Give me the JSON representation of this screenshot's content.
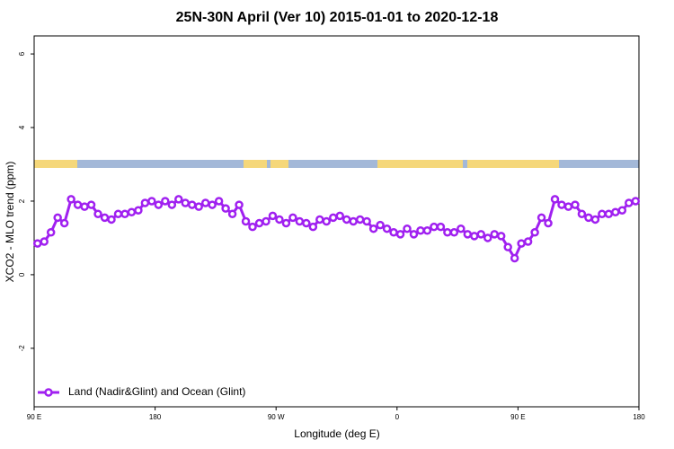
{
  "chart_data": {
    "type": "line",
    "title": "25N-30N April (Ver 10)   2015-01-01 to 2020-12-18",
    "x_label": "Longitude (deg E)",
    "y_label": "XCO2 - MLO trend (ppm)",
    "xlim": [
      90,
      540
    ],
    "ylim": [
      -3.59,
      6.49
    ],
    "xticks": [
      {
        "value": 90,
        "label": "90 E"
      },
      180,
      {
        "value": 270,
        "label": "90 W"
      },
      {
        "value": 360,
        "label": "0"
      },
      {
        "value": 450,
        "label": "90 E"
      },
      {
        "value": 540,
        "label": "180"
      }
    ],
    "yticks": [
      -2,
      0,
      2,
      4,
      6
    ],
    "legend": "bottomleft",
    "x": [
      92.5,
      97.5,
      102.5,
      107.5,
      112.5,
      117.5,
      122.5,
      127.5,
      132.5,
      137.5,
      142.5,
      147.5,
      152.5,
      157.5,
      162.5,
      167.5,
      172.5,
      177.5,
      182.5,
      187.5,
      192.5,
      197.5,
      202.5,
      207.5,
      212.5,
      217.5,
      222.5,
      227.5,
      232.5,
      237.5,
      242.5,
      247.5,
      252.5,
      257.5,
      262.5,
      267.5,
      272.5,
      277.5,
      282.5,
      287.5,
      292.5,
      297.5,
      302.5,
      307.5,
      312.5,
      317.5,
      322.5,
      327.5,
      332.5,
      337.5,
      342.5,
      347.5,
      352.5,
      357.5,
      362.5,
      367.5,
      372.5,
      377.5,
      382.5,
      387.5,
      392.5,
      397.5,
      402.5,
      407.5,
      412.5,
      417.5,
      422.5,
      427.5,
      432.5,
      437.5,
      442.5,
      447.5,
      452.5,
      457.5,
      462.5,
      467.5,
      472.5,
      477.5,
      482.5,
      487.5,
      492.5,
      497.5,
      502.5,
      507.5,
      512.5,
      517.5,
      522.5,
      527.5,
      532.5,
      537.5
    ],
    "series": [
      {
        "name": "Land (Nadir&Glint) and Ocean (Glint)",
        "color": "#a020f0",
        "values": [
          0.85,
          0.9,
          1.15,
          1.55,
          1.4,
          2.05,
          1.9,
          1.85,
          1.9,
          1.65,
          1.55,
          1.5,
          1.65,
          1.65,
          1.7,
          1.75,
          1.95,
          2.0,
          1.9,
          2.0,
          1.9,
          2.05,
          1.95,
          1.9,
          1.85,
          1.95,
          1.9,
          2.0,
          1.8,
          1.65,
          1.9,
          1.45,
          1.3,
          1.4,
          1.45,
          1.6,
          1.5,
          1.4,
          1.55,
          1.45,
          1.4,
          1.3,
          1.5,
          1.45,
          1.55,
          1.6,
          1.5,
          1.45,
          1.5,
          1.45,
          1.25,
          1.35,
          1.25,
          1.15,
          1.1,
          1.25,
          1.1,
          1.2,
          1.2,
          1.3,
          1.3,
          1.15,
          1.15,
          1.25,
          1.1,
          1.05,
          1.1,
          1.0,
          1.1,
          1.05,
          0.75,
          0.45,
          0.85,
          0.9,
          1.15,
          1.55,
          1.4,
          2.05,
          1.9,
          1.85,
          1.9,
          1.65,
          1.55,
          1.5,
          1.65,
          1.65,
          1.7,
          1.75,
          1.95,
          2.0
        ]
      }
    ]
  }
}
